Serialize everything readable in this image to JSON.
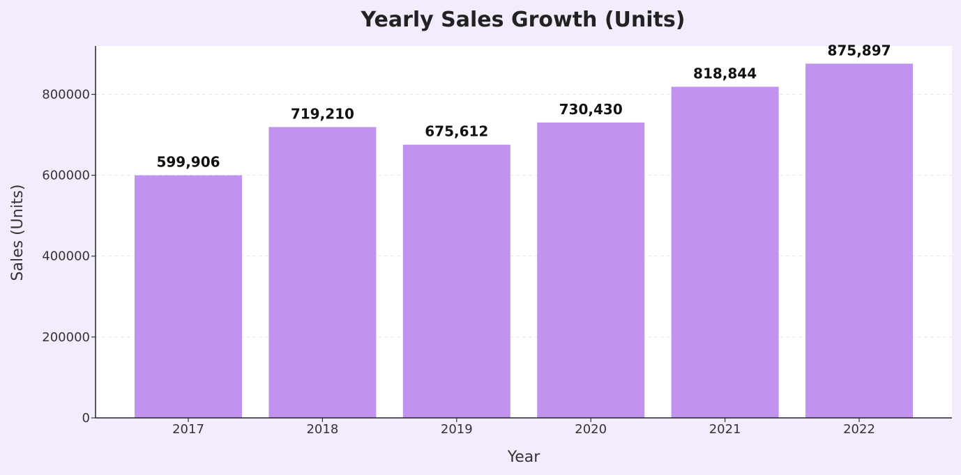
{
  "chart_data": {
    "type": "bar",
    "title": "Yearly Sales Growth (Units)",
    "xlabel": "Year",
    "ylabel": "Sales (Units)",
    "categories": [
      "2017",
      "2018",
      "2019",
      "2020",
      "2021",
      "2022"
    ],
    "values": [
      599906,
      719210,
      675612,
      730430,
      818844,
      875897
    ],
    "data_labels": [
      "599,906",
      "719,210",
      "675,612",
      "730,430",
      "818,844",
      "875,897"
    ],
    "yticks": [
      0,
      200000,
      400000,
      600000,
      800000
    ],
    "ytick_labels": [
      "0",
      "200000",
      "400000",
      "600000",
      "800000"
    ],
    "ylim": [
      0,
      919692
    ],
    "grid": "horizontal dashed",
    "legend": "none",
    "colors": {
      "bar": "#c193ee",
      "plot_background": "#ffffff",
      "page_background": "#f3ecfd",
      "axis": "#333333",
      "grid": "#e6e6e6"
    }
  }
}
